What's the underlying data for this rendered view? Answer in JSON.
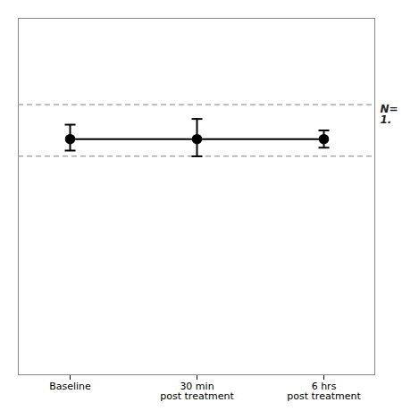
{
  "chart_data": {
    "type": "line",
    "categories": [
      "Baseline",
      "30 min\npost treatment",
      "6 hrs\npost treatment"
    ],
    "values": [
      1.21,
      1.21,
      1.21
    ],
    "error_upper": [
      0.025,
      0.035,
      0.015
    ],
    "error_lower": [
      0.02,
      0.03,
      0.015
    ],
    "color": "#000000",
    "marker": "circle",
    "line_style": "solid",
    "reference_lines": {
      "values": [
        1.27,
        1.18
      ],
      "color": "#999999",
      "line_style": "dashed"
    },
    "annotations": [
      {
        "text": "N=\n1."
      }
    ],
    "ylim": [
      0.8,
      1.42
    ],
    "tick_labels": "x",
    "grid": false
  }
}
